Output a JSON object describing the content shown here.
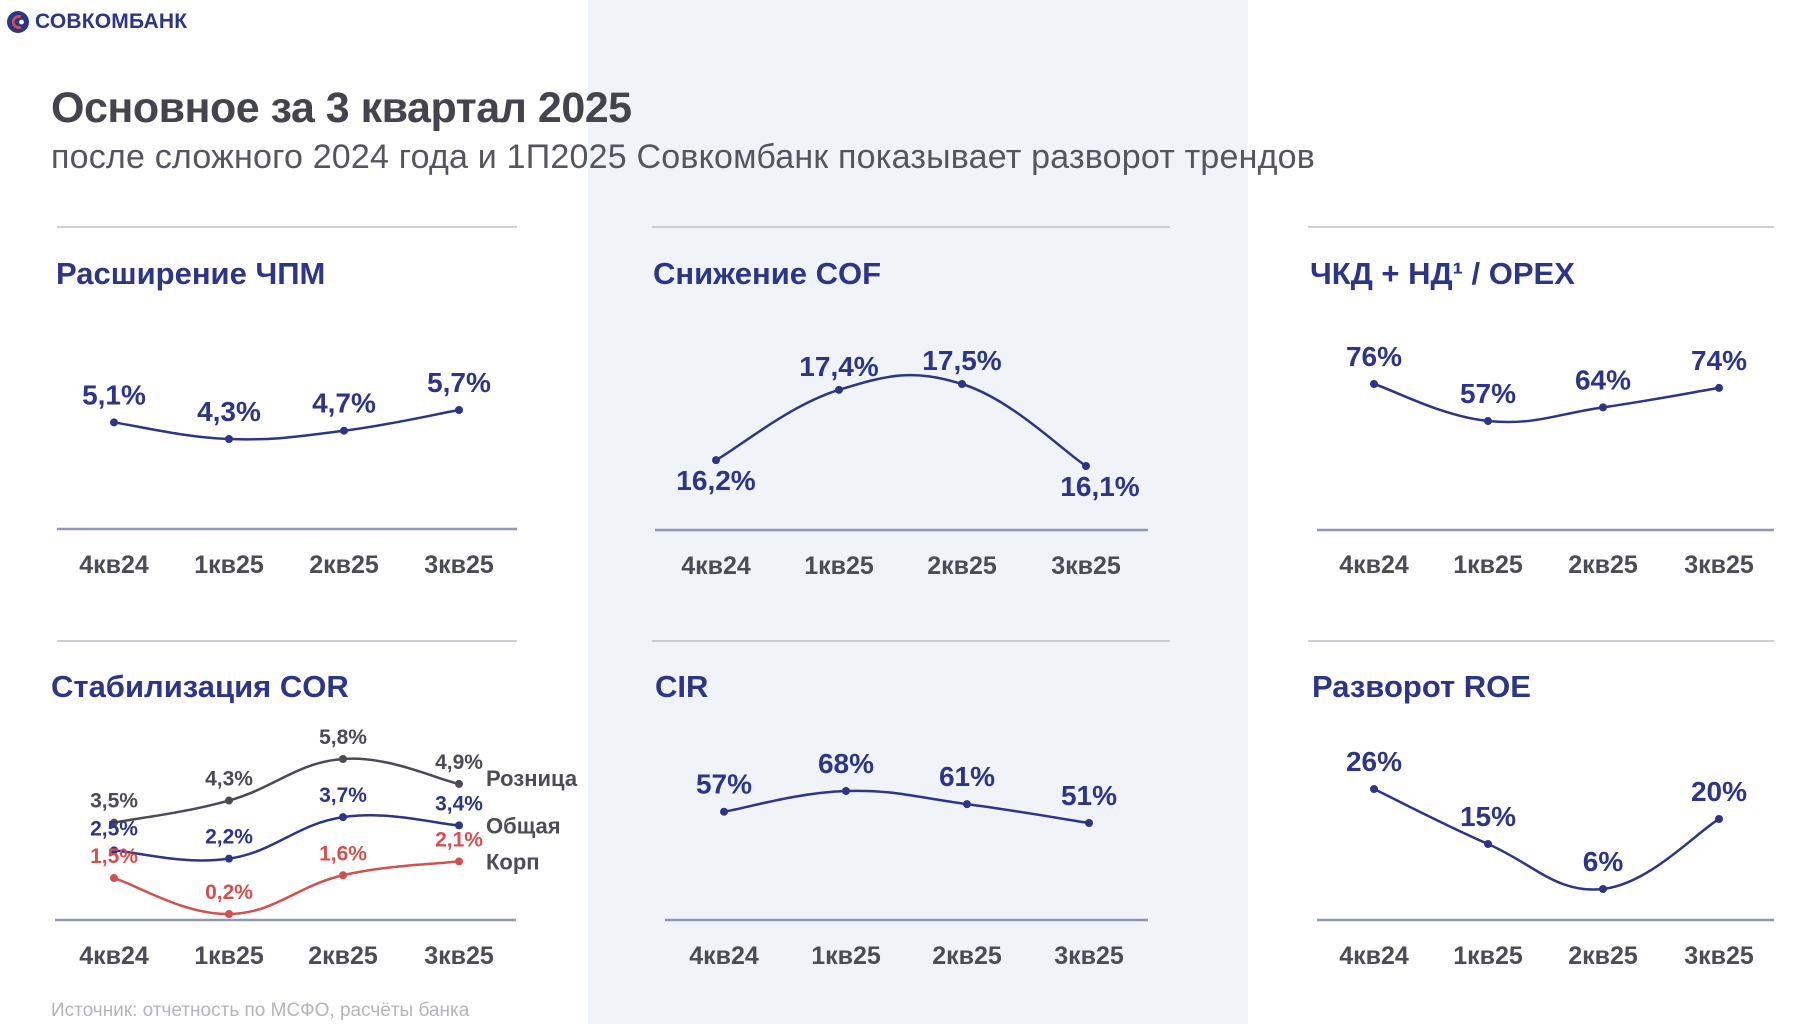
{
  "header": {
    "brand": "СОВКОМБАНК",
    "title": "Основное за 3 квартал 2025",
    "subtitle": "после сложного 2024 года и 1П2025 Совкомбанк показывает разворот трендов"
  },
  "footnote": "Источник: отчетность по МСФО, расчёты банка",
  "colors": {
    "navy": "#2c3586",
    "dark": "#4b4b55",
    "red": "#d2504e",
    "axis": "#8f96b4",
    "rule": "#bdbdc5"
  },
  "chart_data": [
    {
      "id": "nim",
      "type": "line",
      "title": "Расширение ЧПМ",
      "categories": [
        "4кв24",
        "1кв25",
        "2кв25",
        "3кв25"
      ],
      "series": [
        {
          "name": "ЧПМ",
          "values": [
            5.1,
            4.3,
            4.7,
            5.7
          ],
          "labels": [
            "5,1%",
            "4,3%",
            "4,7%",
            "5,7%"
          ],
          "color": "#2c3586"
        }
      ]
    },
    {
      "id": "cof",
      "type": "line",
      "title": "Снижение COF",
      "categories": [
        "4кв24",
        "1кв25",
        "2кв25",
        "3кв25"
      ],
      "series": [
        {
          "name": "COF",
          "values": [
            16.2,
            17.4,
            17.5,
            16.1
          ],
          "labels": [
            "16,2%",
            "17,4%",
            "17,5%",
            "16,1%"
          ],
          "color": "#2c3586"
        }
      ]
    },
    {
      "id": "opex",
      "type": "line",
      "title": "ЧКД + НД¹ / OPEX",
      "categories": [
        "4кв24",
        "1кв25",
        "2кв25",
        "3кв25"
      ],
      "series": [
        {
          "name": "ЧКД + НД / OPEX",
          "values": [
            76,
            57,
            64,
            74
          ],
          "labels": [
            "76%",
            "57%",
            "64%",
            "74%"
          ],
          "color": "#2c3586"
        }
      ]
    },
    {
      "id": "cor",
      "type": "line",
      "title": "Стабилизация COR",
      "categories": [
        "4кв24",
        "1кв25",
        "2кв25",
        "3кв25"
      ],
      "series": [
        {
          "name": "Розница",
          "values": [
            3.5,
            4.3,
            5.8,
            4.9
          ],
          "labels": [
            "3,5%",
            "4,3%",
            "5,8%",
            "4,9%"
          ],
          "color": "#4b4b55"
        },
        {
          "name": "Общая",
          "values": [
            2.5,
            2.2,
            3.7,
            3.4
          ],
          "labels": [
            "2,5%",
            "2,2%",
            "3,7%",
            "3,4%"
          ],
          "color": "#2c3586"
        },
        {
          "name": "Корп",
          "values": [
            1.5,
            0.2,
            1.6,
            2.1
          ],
          "labels": [
            "1,5%",
            "0,2%",
            "1,6%",
            "2,1%"
          ],
          "color": "#d2504e"
        }
      ]
    },
    {
      "id": "cir",
      "type": "line",
      "title": "CIR",
      "categories": [
        "4кв24",
        "1кв25",
        "2кв25",
        "3кв25"
      ],
      "series": [
        {
          "name": "CIR",
          "values": [
            57,
            68,
            61,
            51
          ],
          "labels": [
            "57%",
            "68%",
            "61%",
            "51%"
          ],
          "color": "#2c3586"
        }
      ]
    },
    {
      "id": "roe",
      "type": "line",
      "title": "Разворот ROE",
      "categories": [
        "4кв24",
        "1кв25",
        "2кв25",
        "3кв25"
      ],
      "series": [
        {
          "name": "ROE",
          "values": [
            26,
            15,
            6,
            20
          ],
          "labels": [
            "26%",
            "15%",
            "6%",
            "20%"
          ],
          "color": "#2c3586"
        }
      ]
    }
  ]
}
